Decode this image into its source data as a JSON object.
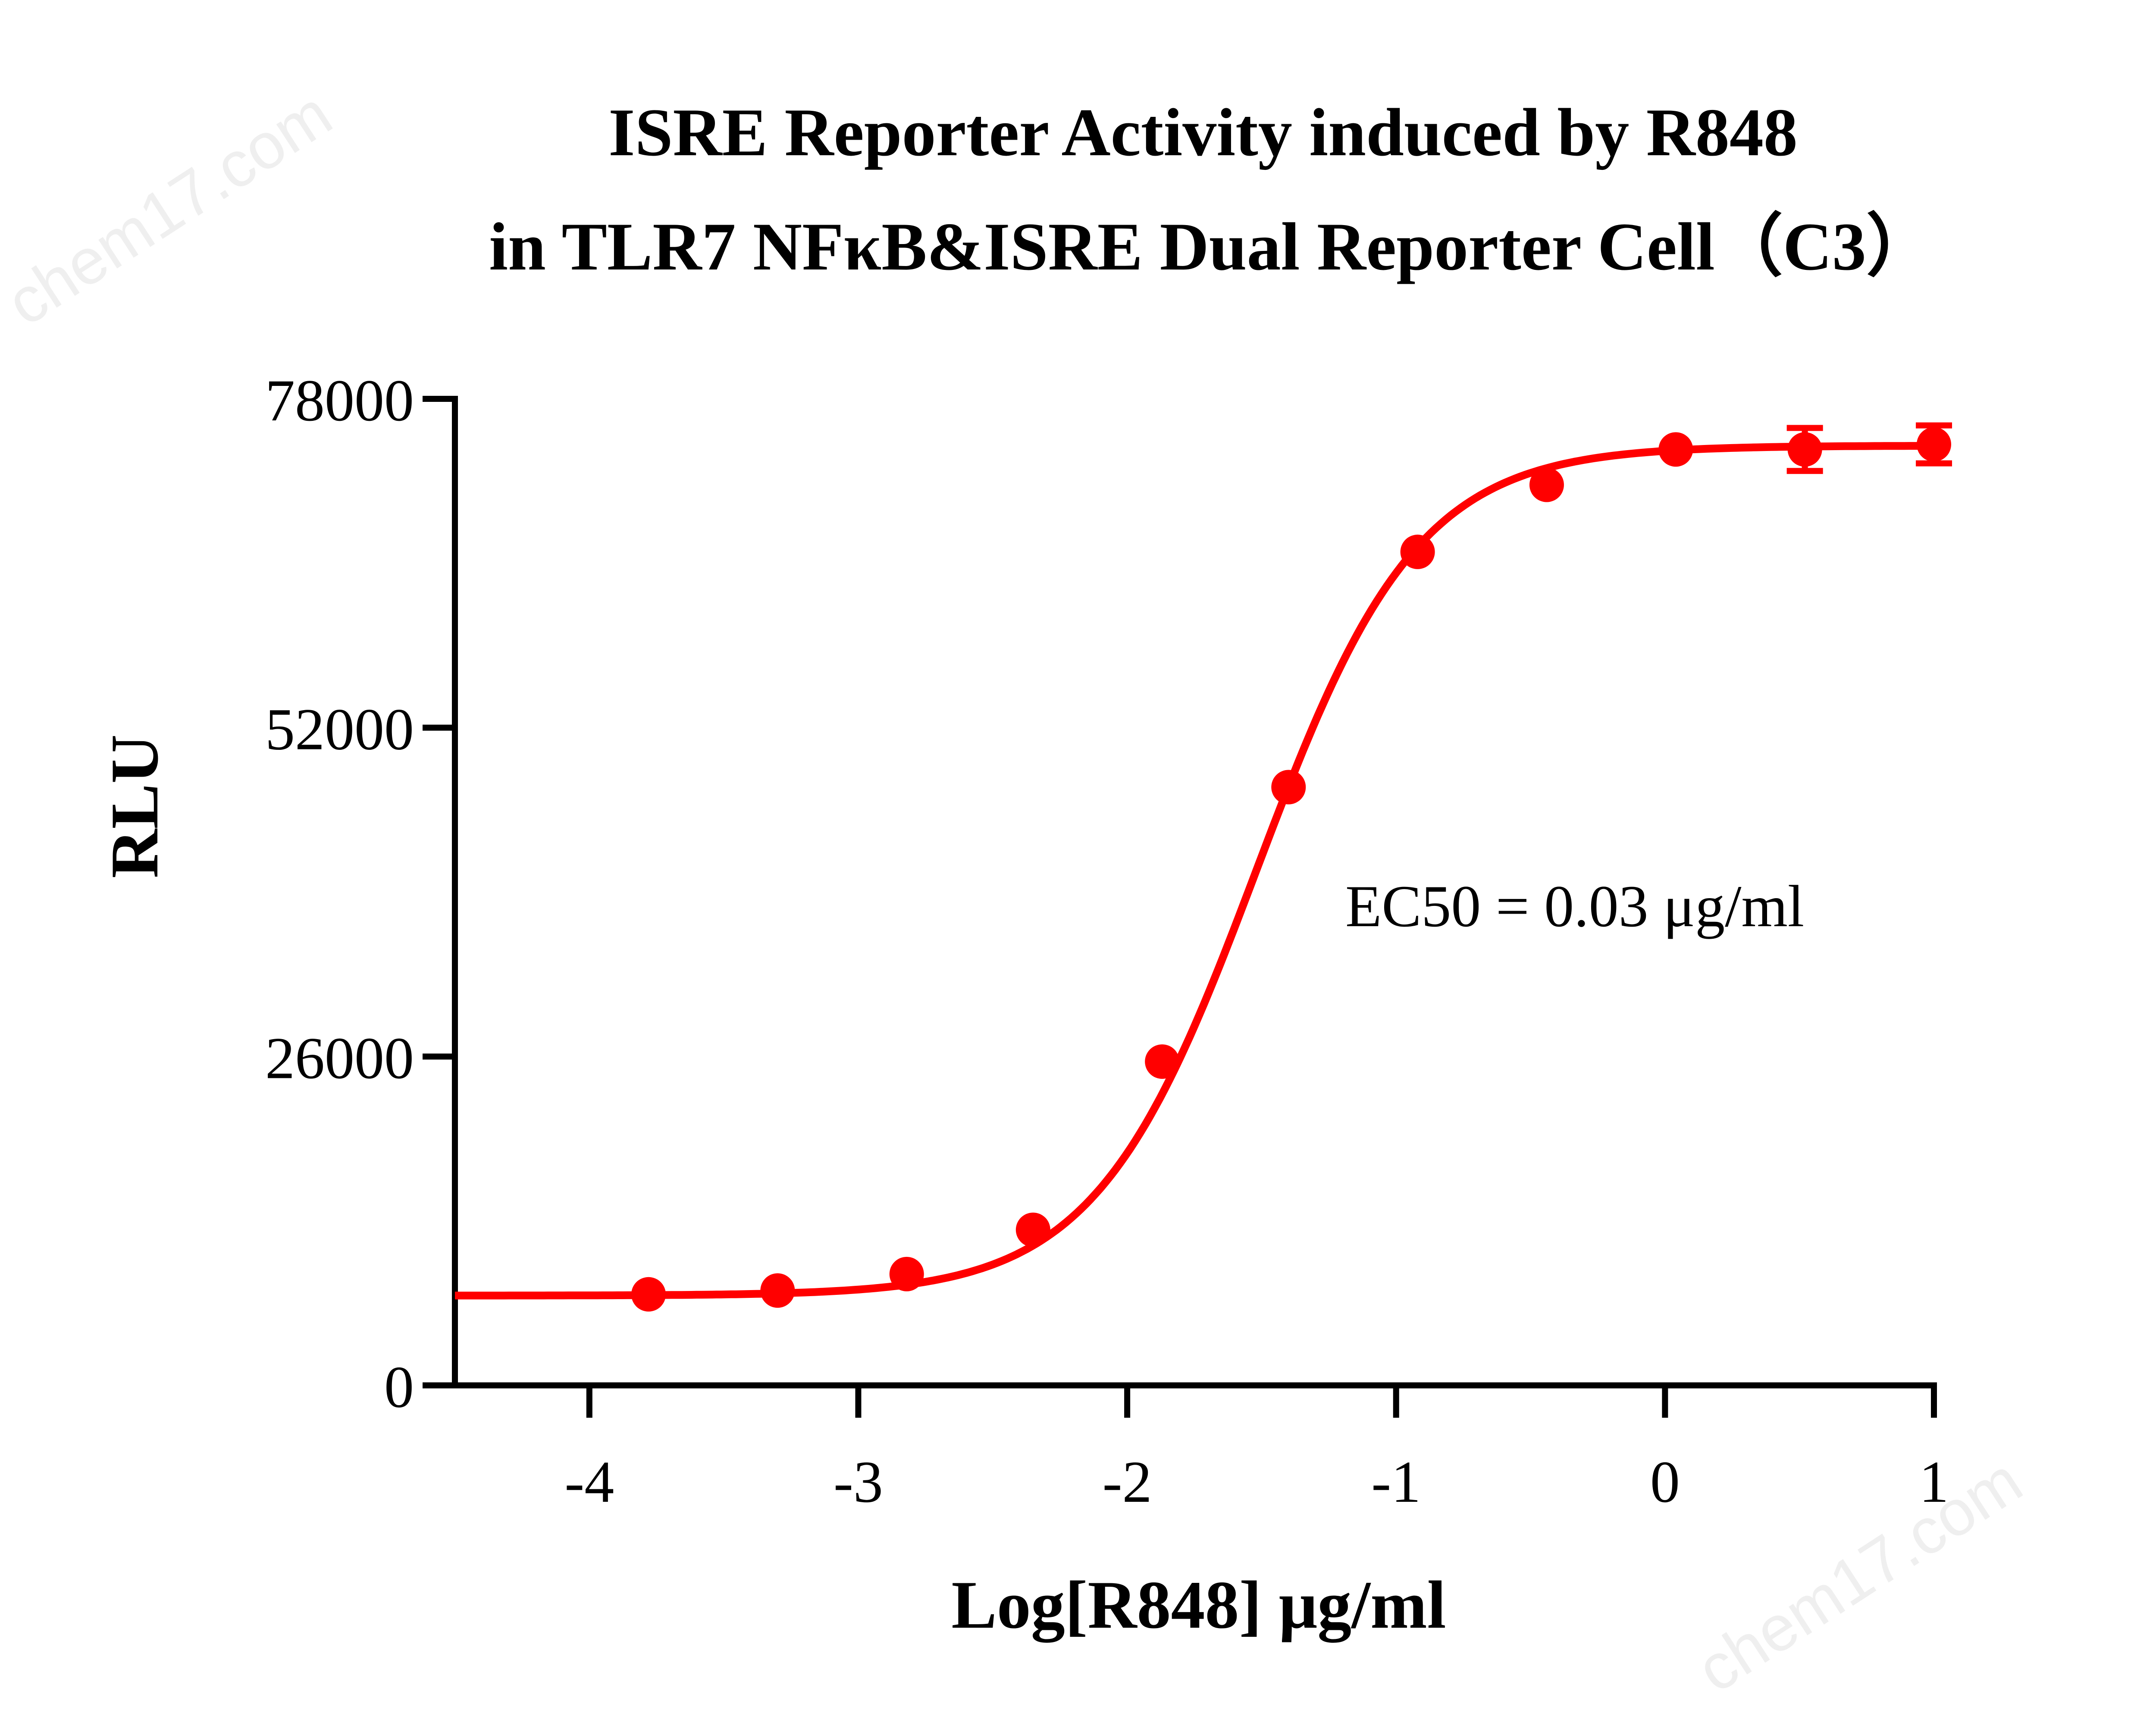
{
  "watermark": "chem17.com",
  "chart_data": {
    "type": "scatter",
    "title_lines": [
      "ISRE Reporter Activity induced by R848",
      "in TLR7 NFκB&ISRE Dual Reporter Cell（C3）"
    ],
    "xlabel": "Log[R848] μg/ml",
    "ylabel": "RLU",
    "xlim": [
      -4.5,
      1
    ],
    "ylim": [
      0,
      78000
    ],
    "xticks": [
      -4,
      -3,
      -2,
      -1,
      0,
      1
    ],
    "xtick_labels": [
      "-4",
      "-3",
      "-2",
      "-1",
      "0",
      "1"
    ],
    "yticks": [
      0,
      26000,
      52000,
      78000
    ],
    "ytick_labels": [
      "0",
      "26000",
      "52000",
      "78000"
    ],
    "annotation": "EC50 = 0.03 μg/ml",
    "color": "#ff0000",
    "grid": false,
    "series": [
      {
        "points": [
          {
            "x": -3.78,
            "y": 7200,
            "err": 0
          },
          {
            "x": -3.3,
            "y": 7500,
            "err": 0
          },
          {
            "x": -2.82,
            "y": 8800,
            "err": 0
          },
          {
            "x": -2.35,
            "y": 12300,
            "err": 0
          },
          {
            "x": -1.87,
            "y": 25600,
            "err": 0
          },
          {
            "x": -1.4,
            "y": 47300,
            "err": 0
          },
          {
            "x": -0.92,
            "y": 65900,
            "err": 0
          },
          {
            "x": -0.44,
            "y": 71200,
            "err": 0
          },
          {
            "x": 0.04,
            "y": 74000,
            "err": 0
          },
          {
            "x": 0.52,
            "y": 74000,
            "err": 1700
          },
          {
            "x": 1.0,
            "y": 74400,
            "err": 1500
          }
        ],
        "fit": {
          "model": "four-parameter logistic",
          "bottom": 7100,
          "top": 74300,
          "logEC50": -1.52,
          "hill": 1.45
        }
      }
    ]
  }
}
